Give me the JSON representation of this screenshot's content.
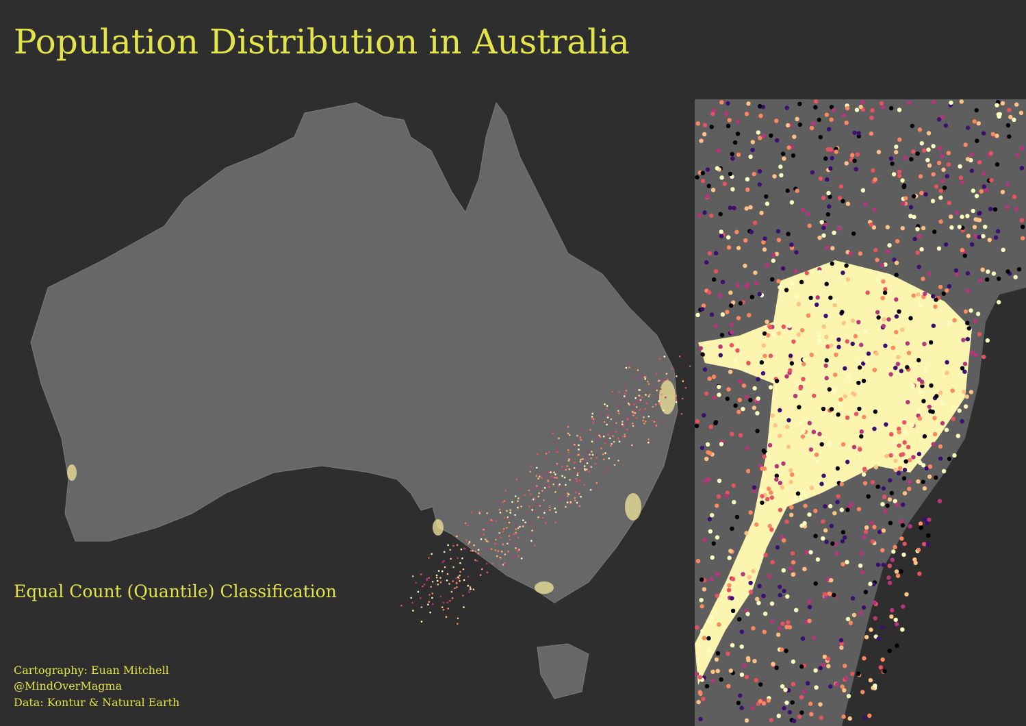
{
  "header": {
    "title": "Population Distribution in Australia"
  },
  "legend": {
    "subtitle": "Equal Count (Quantile) Classification"
  },
  "credits": [
    "Cartography: Euan Mitchell",
    "@MindOverMagma",
    "Data: Kontur & Natural Earth"
  ]
}
